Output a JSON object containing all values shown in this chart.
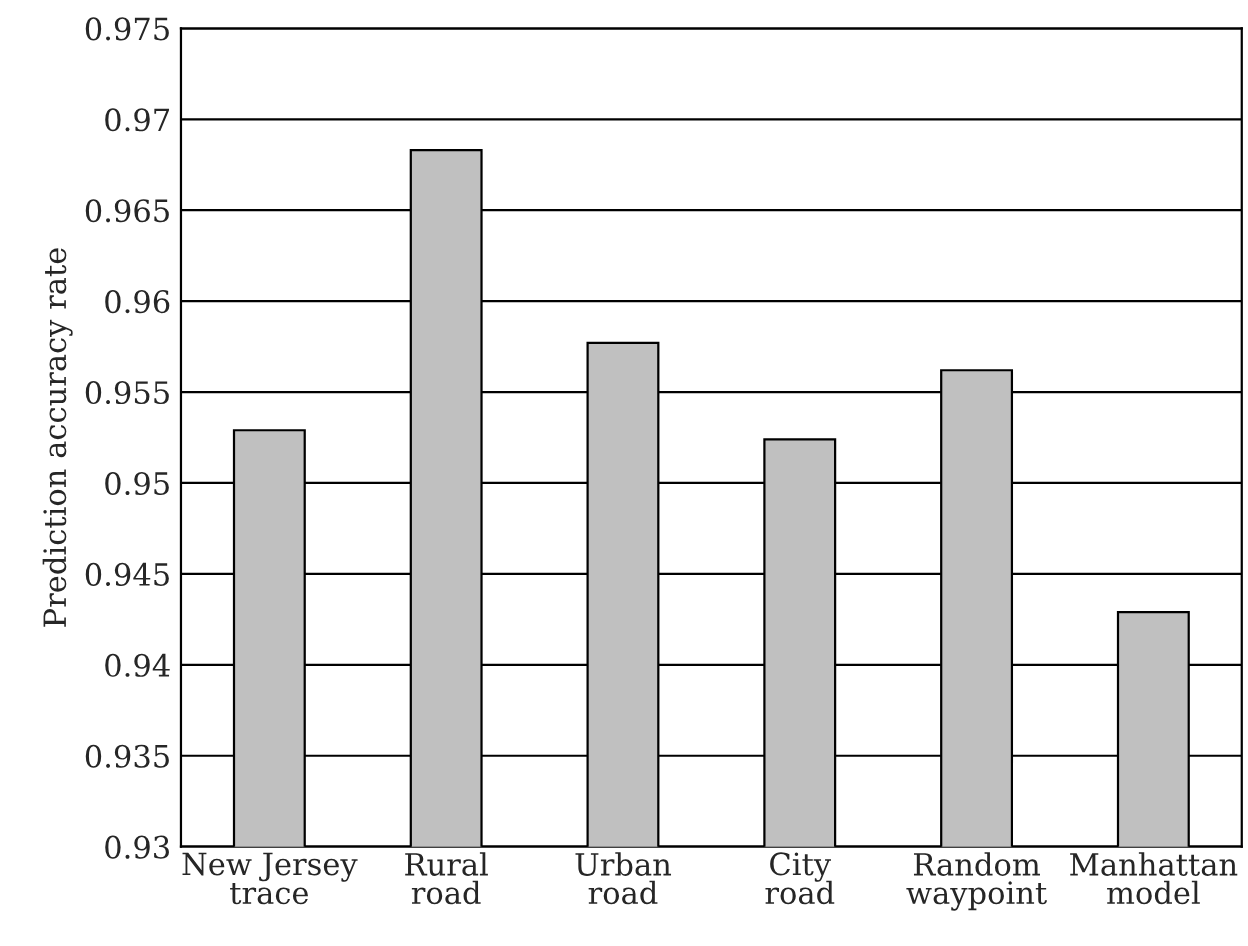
{
  "chart_data": {
    "type": "bar",
    "ylabel": "Prediction accuracy rate",
    "categories": [
      "New Jersey\ntrace",
      "Rural\nroad",
      "Urban\nroad",
      "City\nroad",
      "Random\nwaypoint",
      "Manhattan\nmodel"
    ],
    "values": [
      0.9529,
      0.9683,
      0.9577,
      0.9524,
      0.9562,
      0.9429
    ],
    "color": "#c0c0c0",
    "ylim": [
      0.93,
      0.975
    ],
    "yticks": [
      0.93,
      0.935,
      0.94,
      0.945,
      0.95,
      0.955,
      0.96,
      0.965,
      0.97,
      0.975
    ],
    "grid": "y"
  }
}
